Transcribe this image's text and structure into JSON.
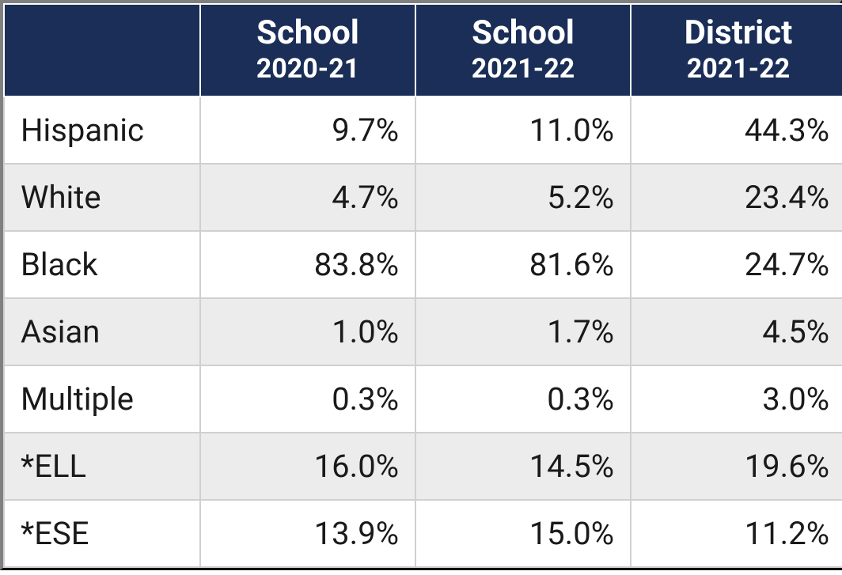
{
  "table": {
    "type": "table",
    "header_bg_color": "#1a2e57",
    "header_text_color": "#ffffff",
    "row_even_bg": "#ececec",
    "row_odd_bg": "#ffffff",
    "border_color": "#d0d0d0",
    "outer_border_color": "#000000",
    "header_fontsize_main": 42,
    "header_fontsize_sub": 34,
    "body_fontsize": 40,
    "columns": [
      {
        "main": "",
        "sub": ""
      },
      {
        "main": "School",
        "sub": "2020-21"
      },
      {
        "main": "School",
        "sub": "2021-22"
      },
      {
        "main": "District",
        "sub": "2021-22"
      }
    ],
    "rows": [
      {
        "label": "Hispanic",
        "values": [
          "9.7%",
          "11.0%",
          "44.3%"
        ]
      },
      {
        "label": "White",
        "values": [
          "4.7%",
          "5.2%",
          "23.4%"
        ]
      },
      {
        "label": "Black",
        "values": [
          "83.8%",
          "81.6%",
          "24.7%"
        ]
      },
      {
        "label": "Asian",
        "values": [
          "1.0%",
          "1.7%",
          "4.5%"
        ]
      },
      {
        "label": "Multiple",
        "values": [
          "0.3%",
          "0.3%",
          "3.0%"
        ]
      },
      {
        "label": "*ELL",
        "values": [
          "16.0%",
          "14.5%",
          "19.6%"
        ]
      },
      {
        "label": "*ESE",
        "values": [
          "13.9%",
          "15.0%",
          "11.2%"
        ]
      }
    ]
  }
}
